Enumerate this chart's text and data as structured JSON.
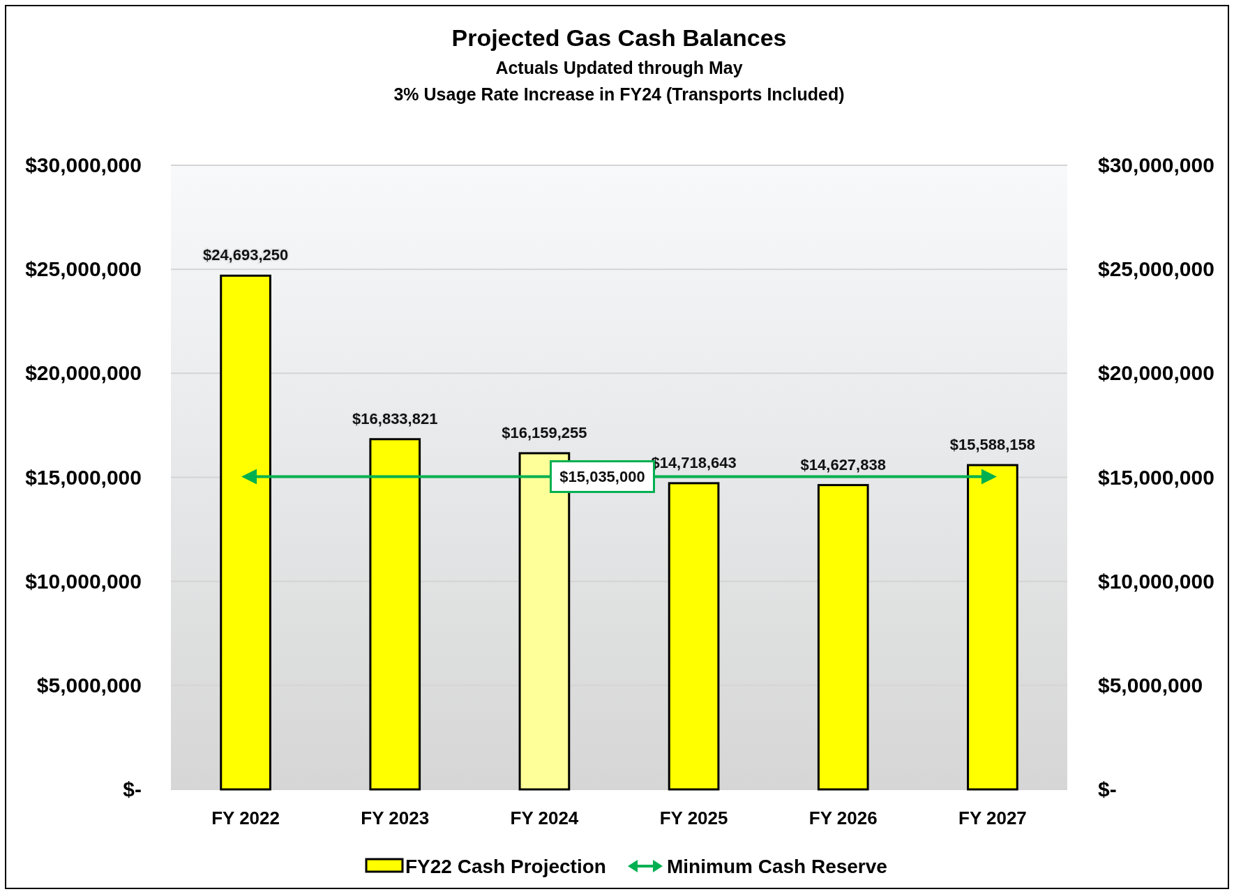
{
  "chart_data": {
    "type": "bar",
    "title": "Projected Gas Cash Balances",
    "subtitle": "Actuals Updated through May\n3% Usage Rate Increase in FY24 (Transports Included)",
    "categories": [
      "FY 2022",
      "FY 2023",
      "FY 2024",
      "FY 2025",
      "FY 2026",
      "FY 2027"
    ],
    "series": [
      {
        "name": "FY22 Cash Projection",
        "color": "#ffff00",
        "colors": [
          "#ffff00",
          "#ffff00",
          "#ffff99",
          "#ffff00",
          "#ffff00",
          "#ffff00"
        ],
        "values": [
          24693250,
          16833821,
          16159255,
          14718643,
          14627838,
          15588158
        ],
        "value_labels": [
          "$24,693,250",
          "$16,833,821",
          "$16,159,255",
          "$14,718,643",
          "$14,627,838",
          "$15,588,158"
        ]
      },
      {
        "name": "Minimum Cash Reserve",
        "type": "line",
        "color": "#00b050",
        "values": [
          15035000,
          15035000,
          15035000,
          15035000,
          15035000,
          15035000
        ]
      }
    ],
    "annotations": [
      {
        "text": "$15,035,000",
        "y": 15035000
      }
    ],
    "ylim": [
      0,
      30000000
    ],
    "yticks": [
      {
        "value": 0,
        "label": "$-"
      },
      {
        "value": 5000000,
        "label": "$5,000,000"
      },
      {
        "value": 10000000,
        "label": "$10,000,000"
      },
      {
        "value": 15000000,
        "label": "$15,000,000"
      },
      {
        "value": 20000000,
        "label": "$20,000,000"
      },
      {
        "value": 25000000,
        "label": "$25,000,000"
      },
      {
        "value": 30000000,
        "label": "$30,000,000"
      }
    ],
    "y2lim": [
      0,
      30000000
    ],
    "y2ticks": [
      {
        "value": 0,
        "label": "$-"
      },
      {
        "value": 5000000,
        "label": "$5,000,000"
      },
      {
        "value": 10000000,
        "label": "$10,000,000"
      },
      {
        "value": 15000000,
        "label": "$15,000,000"
      },
      {
        "value": 20000000,
        "label": "$20,000,000"
      },
      {
        "value": 25000000,
        "label": "$25,000,000"
      },
      {
        "value": 30000000,
        "label": "$30,000,000"
      }
    ],
    "grid": "y",
    "legend": "bottom"
  }
}
